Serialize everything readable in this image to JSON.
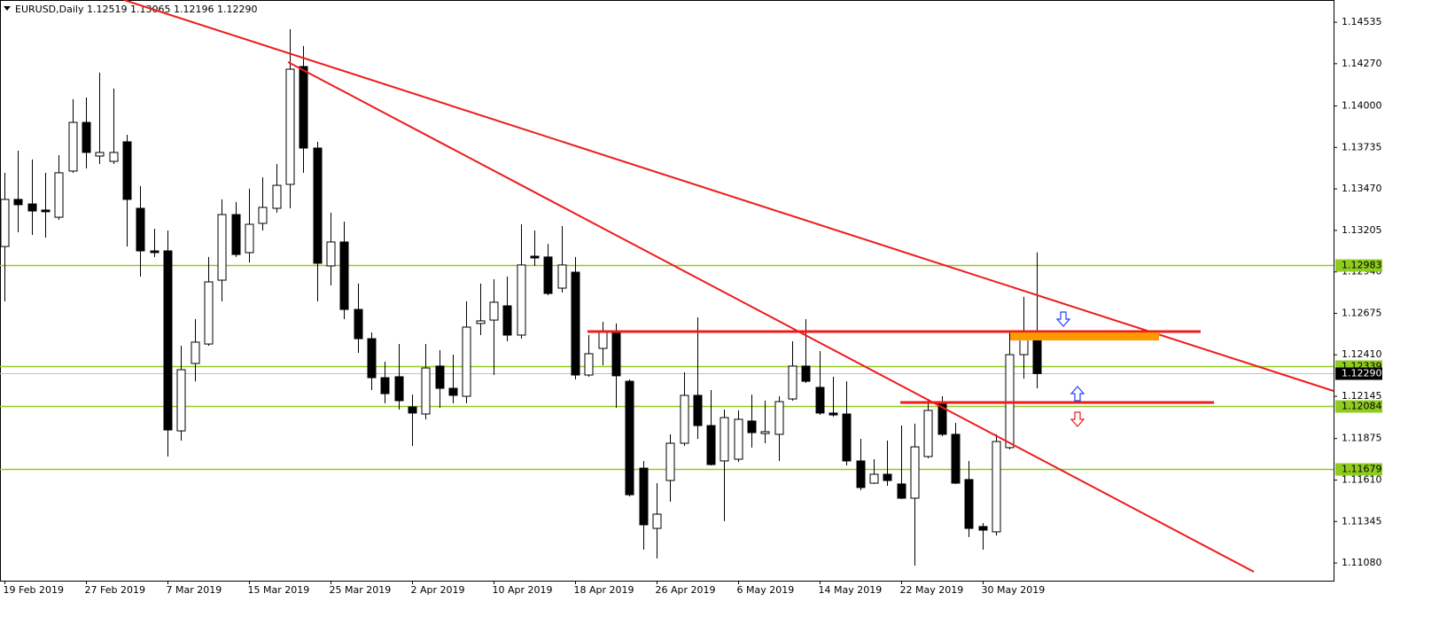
{
  "chart_data": {
    "type": "candlestick",
    "title": "EURUSD,Daily",
    "title_values": "1.12519 1.13065 1.12196 1.12290",
    "categories": [
      "19 Feb 2019",
      null,
      null,
      null,
      null,
      null,
      "27 Feb 2019",
      null,
      null,
      null,
      null,
      null,
      "7 Mar 2019",
      null,
      null,
      null,
      null,
      null,
      "15 Mar 2019",
      null,
      null,
      null,
      null,
      null,
      "25 Mar 2019",
      null,
      null,
      null,
      null,
      null,
      "2 Apr 2019",
      null,
      null,
      null,
      null,
      null,
      "10 Apr 2019",
      null,
      null,
      null,
      null,
      null,
      "18 Apr 2019",
      null,
      null,
      null,
      null,
      null,
      "26 Apr 2019",
      null,
      null,
      null,
      null,
      null,
      "6 May 2019",
      null,
      null,
      null,
      null,
      null,
      "14 May 2019",
      null,
      null,
      null,
      null,
      null,
      "22 May 2019",
      null,
      null,
      null,
      null,
      null,
      "30 May 2019",
      null,
      null,
      null,
      null
    ],
    "open": [
      1.13102,
      1.13403,
      1.13374,
      1.13335,
      1.13289,
      1.13584,
      1.13895,
      1.1368,
      1.13646,
      1.13771,
      1.13346,
      1.13074,
      1.13074,
      1.11924,
      1.12355,
      1.12479,
      1.12887,
      1.13306,
      1.13063,
      1.1325,
      1.13346,
      1.13499,
      1.14252,
      1.13731,
      1.12978,
      1.13131,
      1.127,
      1.12513,
      1.12264,
      1.1227,
      1.12077,
      1.12032,
      1.12338,
      1.12196,
      1.12145,
      1.1261,
      1.12632,
      1.12723,
      1.12536,
      1.1304,
      1.13035,
      1.12836,
      1.12938,
      1.12281,
      1.12451,
      1.12559,
      1.12241,
      1.11686,
      1.11301,
      1.11607,
      1.11845,
      1.12151,
      1.11958,
      1.11732,
      1.11743,
      1.11987,
      1.11907,
      1.11902,
      1.12128,
      1.12338,
      1.12202,
      1.12038,
      1.12032,
      1.11732,
      1.1159,
      1.11647,
      1.11585,
      1.11494,
      1.1176,
      1.12094,
      1.11902,
      1.11613,
      1.11313,
      1.11279,
      1.11817,
      1.12411,
      1.12519
    ],
    "high": [
      1.13573,
      1.13714,
      1.13658,
      1.13573,
      1.13686,
      1.14043,
      1.14054,
      1.14213,
      1.14111,
      1.13816,
      1.13488,
      1.13216,
      1.13204,
      1.12468,
      1.12638,
      1.13035,
      1.13403,
      1.13386,
      1.13471,
      1.13544,
      1.13629,
      1.1449,
      1.14383,
      1.13771,
      1.13318,
      1.13261,
      1.12865,
      1.12553,
      1.12366,
      1.12479,
      1.12156,
      1.12479,
      1.1244,
      1.12411,
      1.12751,
      1.12865,
      1.12893,
      1.1291,
      1.13244,
      1.13204,
      1.13119,
      1.13233,
      1.13035,
      1.12536,
      1.12621,
      1.1261,
      1.12253,
      1.11732,
      1.1159,
      1.11902,
      1.12298,
      1.12649,
      1.12185,
      1.1206,
      1.12055,
      1.12156,
      1.12117,
      1.12145,
      1.12496,
      1.12638,
      1.12434,
      1.1227,
      1.12241,
      1.11873,
      1.11743,
      1.11862,
      1.11958,
      1.1197,
      1.12128,
      1.12145,
      1.11975,
      1.11732,
      1.11335,
      1.11902,
      1.12553,
      1.1278,
      1.13065
    ],
    "low": [
      1.12751,
      1.13193,
      1.13176,
      1.13159,
      1.13272,
      1.13573,
      1.13601,
      1.13629,
      1.13629,
      1.13102,
      1.1291,
      1.13035,
      1.1176,
      1.11862,
      1.12241,
      1.12468,
      1.12751,
      1.13035,
      1.13,
      1.13204,
      1.13318,
      1.13346,
      1.13573,
      1.12751,
      1.12853,
      1.12638,
      1.12423,
      1.12185,
      1.121,
      1.1206,
      1.11828,
      1.11998,
      1.12072,
      1.121,
      1.121,
      1.12536,
      1.12281,
      1.12496,
      1.12513,
      1.12978,
      1.12791,
      1.12808,
      1.12253,
      1.1227,
      1.12343,
      1.12072,
      1.11505,
      1.11165,
      1.11109,
      1.11471,
      1.11828,
      1.11873,
      1.11703,
      1.11347,
      1.11726,
      1.11817,
      1.11845,
      1.11732,
      1.12117,
      1.1223,
      1.12026,
      1.12015,
      1.11703,
      1.11545,
      1.11585,
      1.11573,
      1.11488,
      1.11063,
      1.11749,
      1.1189,
      1.11585,
      1.11245,
      1.11165,
      1.11256,
      1.11805,
      1.12258,
      1.12196
    ],
    "close": [
      1.13403,
      1.13369,
      1.13329,
      1.13324,
      1.13573,
      1.13895,
      1.13703,
      1.13703,
      1.13703,
      1.13403,
      1.13074,
      1.13063,
      1.1193,
      1.12315,
      1.12491,
      1.12876,
      1.13306,
      1.13051,
      1.13244,
      1.13352,
      1.13493,
      1.14235,
      1.13731,
      1.12995,
      1.13131,
      1.127,
      1.12513,
      1.12264,
      1.12162,
      1.12117,
      1.12038,
      1.12326,
      1.12196,
      1.12151,
      1.12587,
      1.12627,
      1.12746,
      1.12536,
      1.12984,
      1.13029,
      1.12802,
      1.12984,
      1.12281,
      1.12417,
      1.12564,
      1.12276,
      1.11516,
      1.11324,
      1.11392,
      1.11845,
      1.12151,
      1.11958,
      1.11709,
      1.12009,
      1.11998,
      1.11913,
      1.11919,
      1.12111,
      1.12338,
      1.12241,
      1.12038,
      1.12026,
      1.11732,
      1.11562,
      1.11647,
      1.11607,
      1.11494,
      1.11822,
      1.12055,
      1.11902,
      1.1159,
      1.11301,
      1.1129,
      1.11856,
      1.12411,
      1.12513,
      1.1229
    ],
    "up_color": "#ffffff",
    "down_color": "#000000",
    "ylim": [
      1.10967,
      1.14677
    ],
    "yticks": [
      {
        "value": 1.14535,
        "label": "1.14535"
      },
      {
        "value": 1.1427,
        "label": "1.14270"
      },
      {
        "value": 1.14,
        "label": "1.14000"
      },
      {
        "value": 1.13735,
        "label": "1.13735"
      },
      {
        "value": 1.1347,
        "label": "1.13470"
      },
      {
        "value": 1.13205,
        "label": "1.13205"
      },
      {
        "value": 1.1294,
        "label": "1.12940"
      },
      {
        "value": 1.12675,
        "label": "1.12675"
      },
      {
        "value": 1.1241,
        "label": "1.12410"
      },
      {
        "value": 1.12145,
        "label": "1.12145"
      },
      {
        "value": 1.11875,
        "label": "1.11875"
      },
      {
        "value": 1.1161,
        "label": "1.11610"
      },
      {
        "value": 1.11345,
        "label": "1.11345"
      },
      {
        "value": 1.1108,
        "label": "1.11080"
      }
    ],
    "levels": [
      {
        "value": 1.12983
      },
      {
        "value": 1.12339
      },
      {
        "value": 1.12084
      },
      {
        "value": 1.11679
      }
    ],
    "level_color": "#90cc1e",
    "bid": {
      "value": 1.1229,
      "label": "1.12290"
    },
    "bid_color": "#c0c0c0"
  }
}
